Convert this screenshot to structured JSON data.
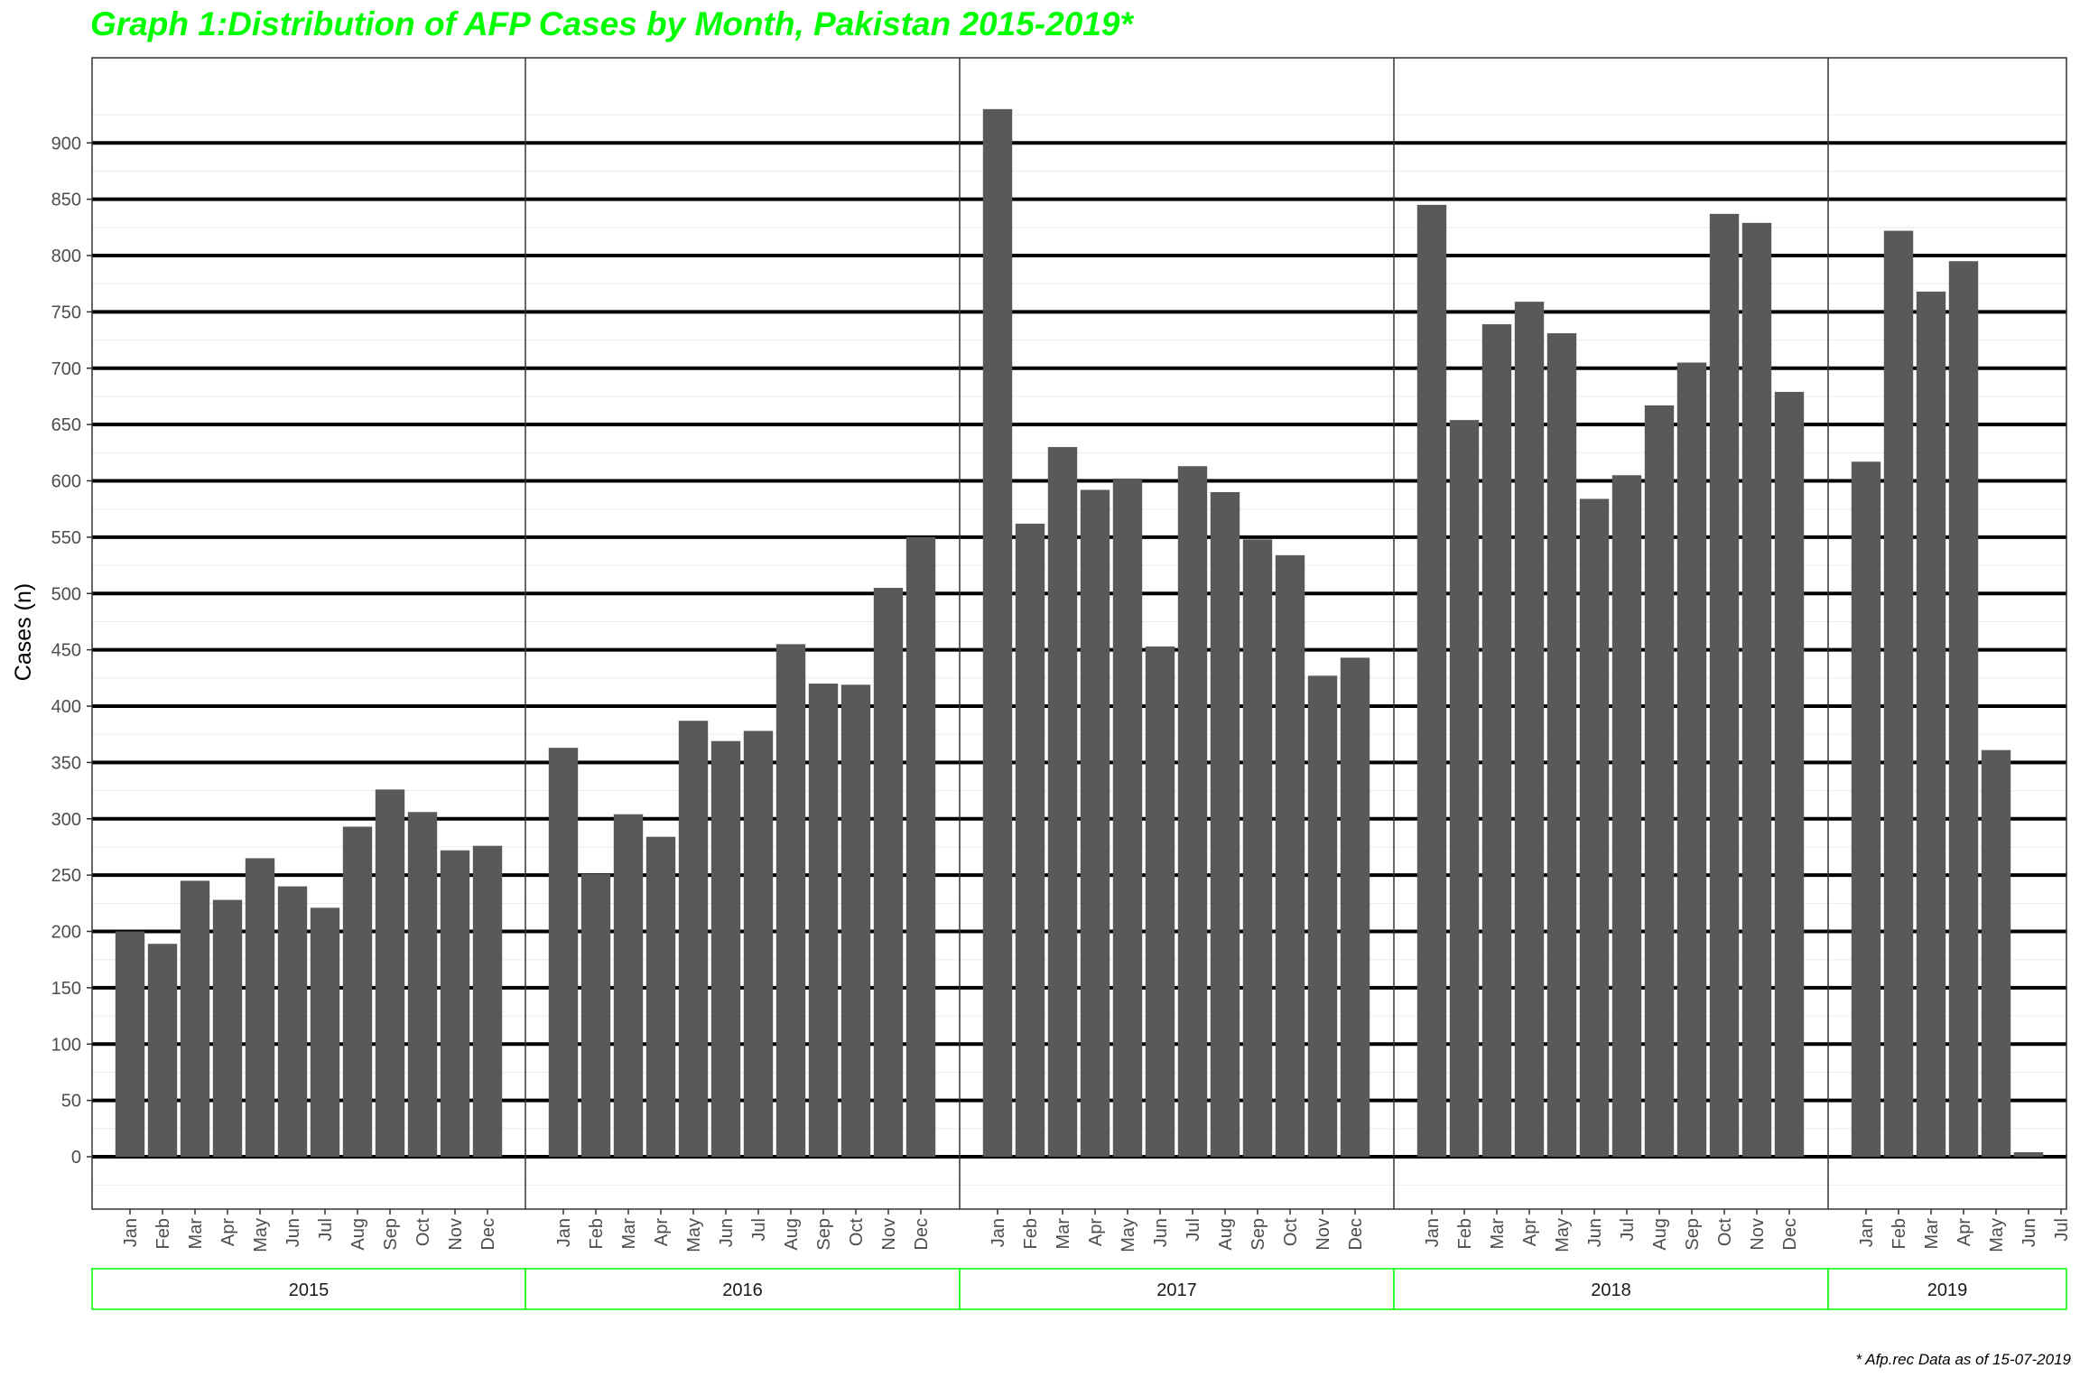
{
  "title": "Graph 1:Distribution of AFP Cases by Month, Pakistan 2015-2019*",
  "footnote": "* Afp.rec Data as of  15-07-2019",
  "colors": {
    "title": "#00ff00",
    "bar": "#595959",
    "facet_border": "#00ff00",
    "gridline": "#000000"
  },
  "chart_data": {
    "type": "bar",
    "title": "Graph 1:Distribution of AFP Cases by Month, Pakistan 2015-2019*",
    "ylabel": "Cases (n)",
    "xlabel": "",
    "ylim": [
      -50,
      980
    ],
    "yticks": [
      0,
      50,
      100,
      150,
      200,
      250,
      300,
      350,
      400,
      450,
      500,
      550,
      600,
      650,
      700,
      750,
      800,
      850,
      900
    ],
    "grid": true,
    "legend": "none",
    "facets": [
      {
        "year": "2015",
        "categories": [
          "Jan",
          "Feb",
          "Mar",
          "Apr",
          "May",
          "Jun",
          "Jul",
          "Aug",
          "Sep",
          "Oct",
          "Nov",
          "Dec"
        ],
        "values": [
          200,
          189,
          245,
          228,
          265,
          240,
          221,
          293,
          326,
          306,
          272,
          276
        ]
      },
      {
        "year": "2016",
        "categories": [
          "Jan",
          "Feb",
          "Mar",
          "Apr",
          "May",
          "Jun",
          "Jul",
          "Aug",
          "Sep",
          "Oct",
          "Nov",
          "Dec"
        ],
        "values": [
          363,
          251,
          304,
          284,
          387,
          369,
          378,
          455,
          420,
          419,
          505,
          550
        ]
      },
      {
        "year": "2017",
        "categories": [
          "Jan",
          "Feb",
          "Mar",
          "Apr",
          "May",
          "Jun",
          "Jul",
          "Aug",
          "Sep",
          "Oct",
          "Nov",
          "Dec"
        ],
        "values": [
          930,
          562,
          630,
          592,
          602,
          453,
          613,
          590,
          548,
          534,
          427,
          443
        ]
      },
      {
        "year": "2018",
        "categories": [
          "Jan",
          "Feb",
          "Mar",
          "Apr",
          "May",
          "Jun",
          "Jul",
          "Aug",
          "Sep",
          "Oct",
          "Nov",
          "Dec"
        ],
        "values": [
          845,
          654,
          739,
          759,
          731,
          584,
          605,
          667,
          705,
          837,
          829,
          679
        ]
      },
      {
        "year": "2019",
        "categories": [
          "Jan",
          "Feb",
          "Mar",
          "Apr",
          "May",
          "Jun",
          "Jul"
        ],
        "values": [
          617,
          822,
          768,
          795,
          361,
          4,
          0
        ]
      }
    ]
  }
}
